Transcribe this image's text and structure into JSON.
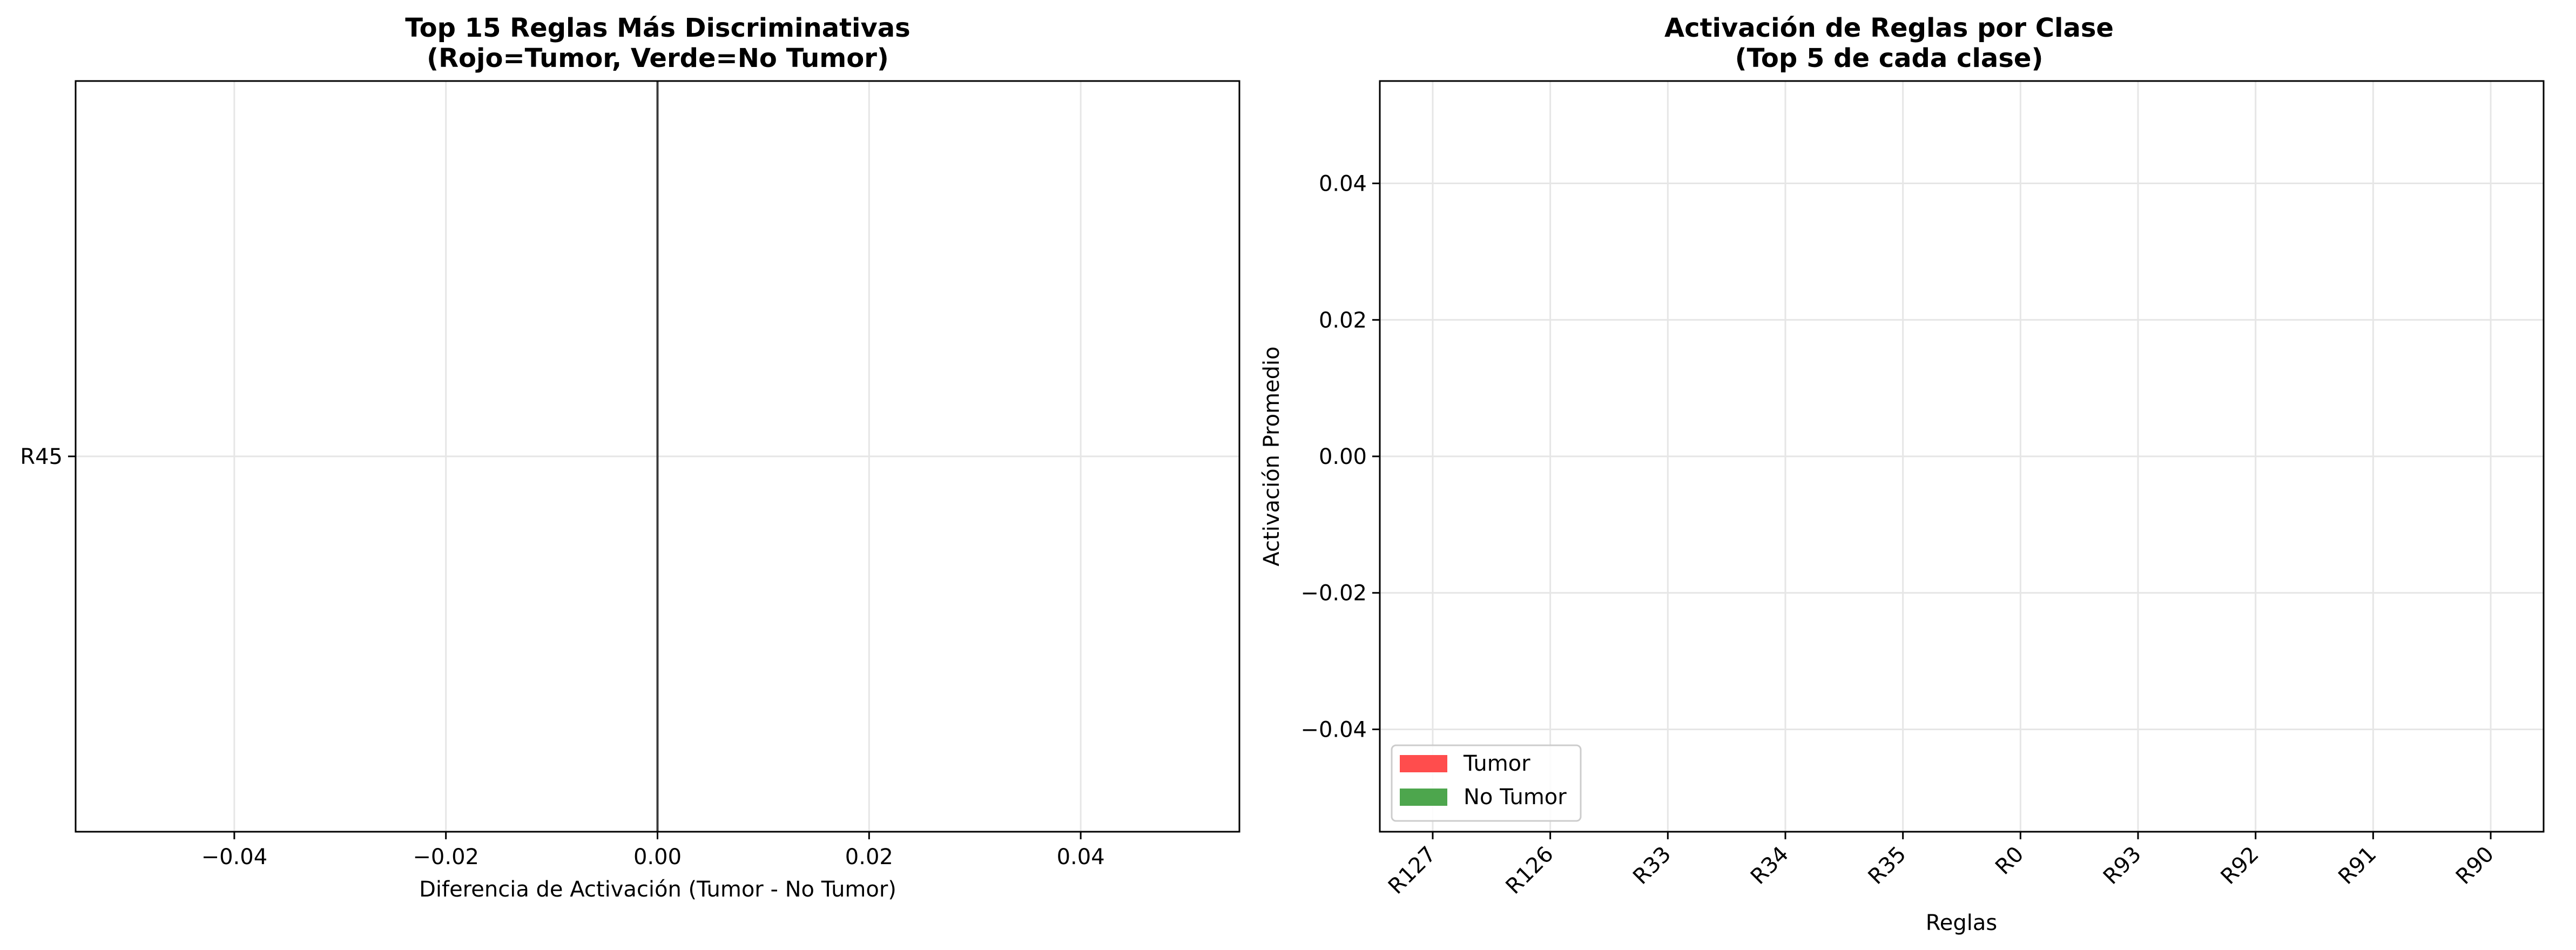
{
  "chart_data": [
    {
      "type": "bar",
      "orientation": "horizontal",
      "title": "Top 15 Reglas Más Discriminativas",
      "subtitle": "(Rojo=Tumor, Verde=No Tumor)",
      "xlabel": "Diferencia de Activación (Tumor - No Tumor)",
      "ylabel": "",
      "xlim": [
        -0.055,
        0.055
      ],
      "x_ticks": [
        "−0.04",
        "−0.02",
        "0.00",
        "0.02",
        "0.04"
      ],
      "x_tick_values": [
        -0.04,
        -0.02,
        0.0,
        0.02,
        0.04
      ],
      "categories": [
        "R45"
      ],
      "values": [
        0.0
      ],
      "reference_line": 0.0,
      "grid": true,
      "colors": {
        "positive": "#ff0000",
        "negative": "#008000",
        "zero_line": "#000000",
        "grid": "#e6e6e6"
      }
    },
    {
      "type": "bar",
      "title": "Activación de Reglas por Clase",
      "subtitle": "(Top 5 de cada clase)",
      "xlabel": "Reglas",
      "ylabel": "Activación Promedio",
      "ylim": [
        -0.055,
        0.055
      ],
      "y_ticks": [
        "−0.04",
        "−0.02",
        "0.00",
        "0.02",
        "0.04"
      ],
      "y_tick_values": [
        -0.04,
        -0.02,
        0.0,
        0.02,
        0.04
      ],
      "categories": [
        "R127",
        "R126",
        "R33",
        "R34",
        "R35",
        "R0",
        "R93",
        "R92",
        "R91",
        "R90"
      ],
      "series": [
        {
          "name": "Tumor",
          "color": "#ff4d4d",
          "values": [
            0,
            0,
            0,
            0,
            0,
            0,
            0,
            0,
            0,
            0
          ]
        },
        {
          "name": "No Tumor",
          "color": "#4da64d",
          "values": [
            0,
            0,
            0,
            0,
            0,
            0,
            0,
            0,
            0,
            0
          ]
        }
      ],
      "legend_position": "lower-left",
      "grid": true
    }
  ]
}
